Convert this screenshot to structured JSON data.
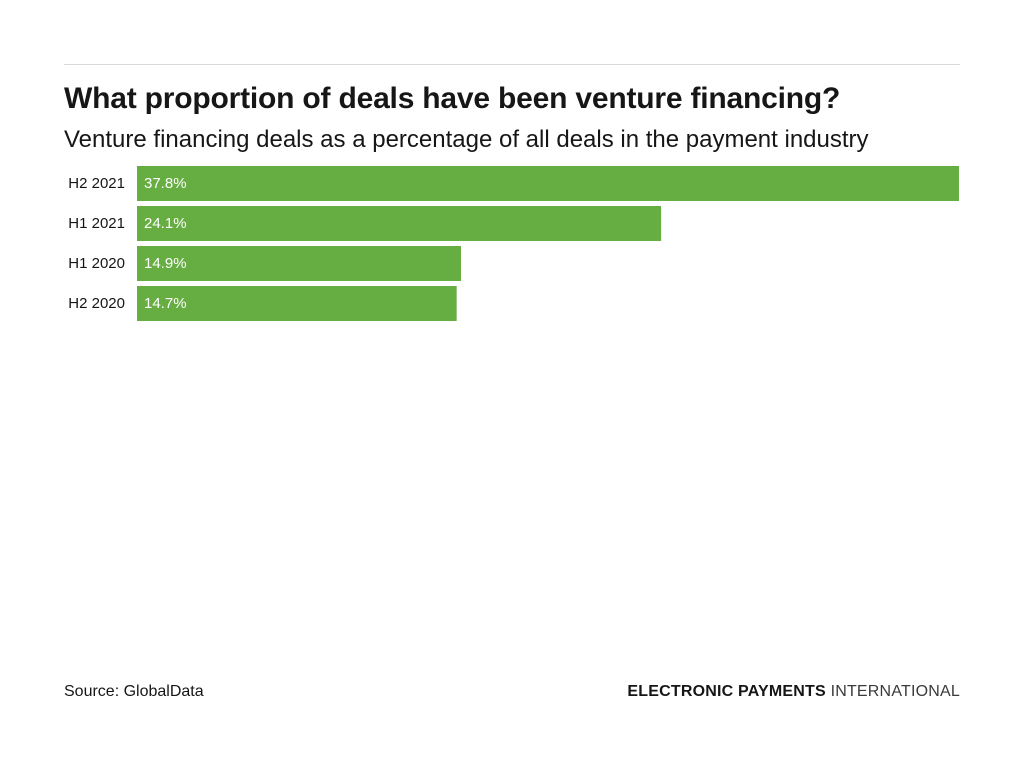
{
  "header": {
    "title": "What proportion of deals have been venture financing?",
    "subtitle": "Venture financing deals as a percentage of all deals in the payment industry"
  },
  "footer": {
    "source": "Source: GlobalData",
    "brand_strong": "ELECTRONIC PAYMENTS",
    "brand_light": "INTERNATIONAL"
  },
  "colors": {
    "bar": "#66ad42",
    "bar_label": "#ffffff",
    "axis_label": "#161616",
    "rule": "#d9d9d9"
  },
  "chart_data": {
    "type": "bar",
    "orientation": "horizontal",
    "title": "What proportion of deals have been venture financing?",
    "subtitle": "Venture financing deals as a percentage of all deals in the payment industry",
    "categories": [
      "H2 2021",
      "H1 2021",
      "H1 2020",
      "H2 2020"
    ],
    "values": [
      37.8,
      24.1,
      14.9,
      14.7
    ],
    "value_labels": [
      "37.8%",
      "24.1%",
      "14.9%",
      "14.7%"
    ],
    "unit": "%",
    "xlim": [
      0,
      37.8
    ],
    "grid": false,
    "legend": "none"
  }
}
